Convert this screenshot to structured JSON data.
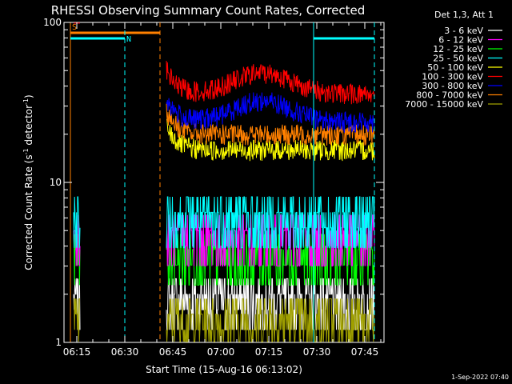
{
  "chart_data": {
    "type": "line",
    "title": "RHESSI Observing Summary Count Rates, Corrected",
    "xlabel": "Start Time (15-Aug-16 06:13:02)",
    "ylabel_main": "Corrected Count Rate (s",
    "ylabel_sup1": "-1",
    "ylabel_mid": " detector",
    "ylabel_sup2": "-1",
    "ylabel_end": ")",
    "timestamp": "1-Sep-2022 07:40",
    "legend_header": "Det 1,3, Att 1",
    "y_scale": "log",
    "y_range": [
      1,
      100
    ],
    "y_ticks": [
      {
        "v": 1,
        "label": "1"
      },
      {
        "v": 10,
        "label": "10"
      },
      {
        "v": 100,
        "label": "100"
      }
    ],
    "x_range_minutes": [
      6.2,
      13.0,
      48.0,
      51.0,
      45.0,
      60.0
    ],
    "x_range": [
      "06:11",
      "07:51"
    ],
    "x_ticks": [
      "06:15",
      "06:30",
      "06:45",
      "07:00",
      "07:15",
      "07:30",
      "07:45"
    ],
    "series": [
      {
        "name": "3 - 6 keV",
        "color": "#ffffff",
        "level": 2.0,
        "style": "discrete"
      },
      {
        "name": "6 - 12 keV",
        "color": "#ff00ff",
        "level": 5.0,
        "style": "discrete"
      },
      {
        "name": "12 - 25 keV",
        "color": "#00ff00",
        "level": 3.8,
        "style": "discrete"
      },
      {
        "name": "25 - 50 keV",
        "color": "#00ffff",
        "level": 6.5,
        "style": "discrete"
      },
      {
        "name": "50 - 100 keV",
        "color": "#ffff00",
        "level": 16,
        "style": "noisy"
      },
      {
        "name": "100 - 300 keV",
        "color": "#ff0000",
        "level": 36,
        "style": "noisy"
      },
      {
        "name": "300 - 800 keV",
        "color": "#0000ff",
        "level": 24,
        "style": "noisy"
      },
      {
        "name": "800 - 7000 keV",
        "color": "#ff8000",
        "level": 20,
        "style": "noisy"
      },
      {
        "name": "7000 - 15000 keV",
        "color": "#a0a000",
        "level": 1.5,
        "style": "discrete"
      }
    ],
    "markers": {
      "saa_label": "S",
      "night_label": "N",
      "saa_interval": [
        "06:13",
        "06:41"
      ],
      "night_intervals": [
        [
          "06:13",
          "06:30"
        ],
        [
          "07:29",
          "07:48"
        ]
      ],
      "colors": {
        "saa": "#ff8000",
        "night": "#00ffff"
      }
    }
  }
}
